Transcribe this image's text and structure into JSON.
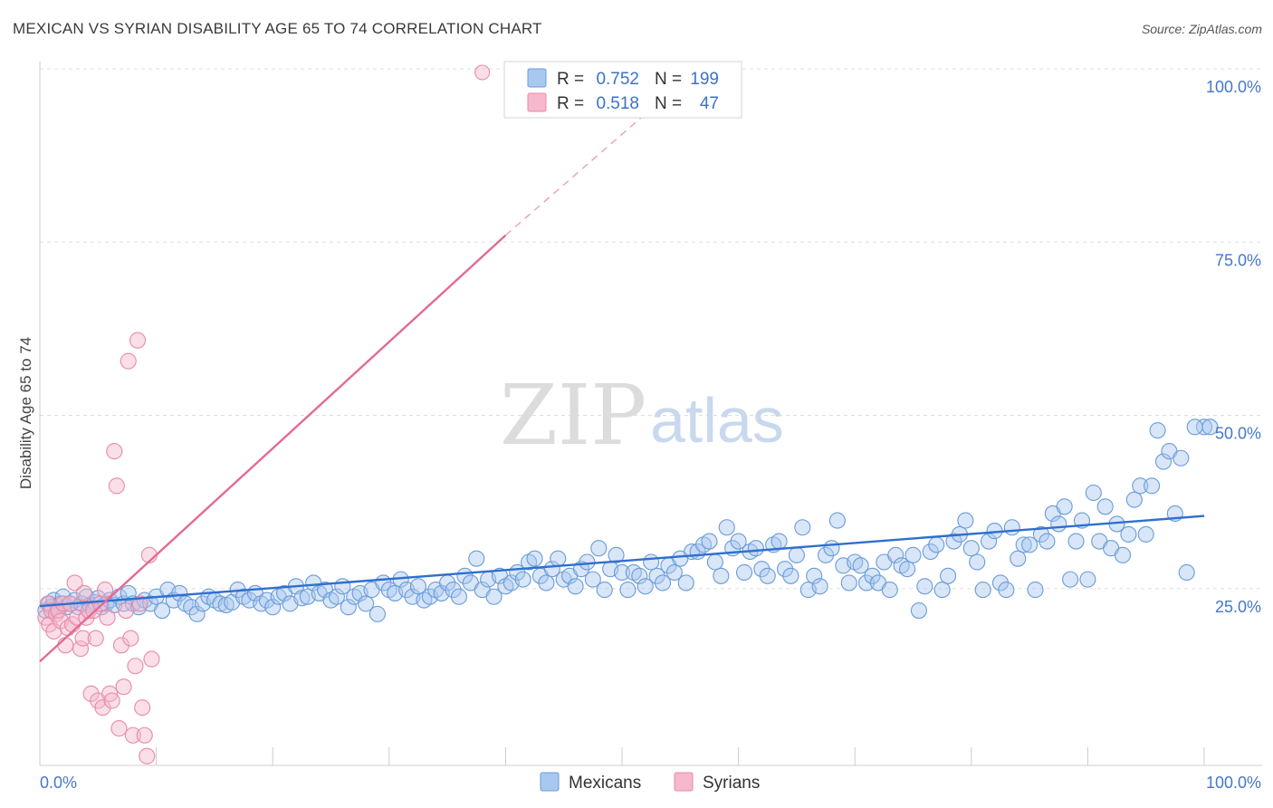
{
  "title": "MEXICAN VS SYRIAN DISABILITY AGE 65 TO 74 CORRELATION CHART",
  "source": "Source: ZipAtlas.com",
  "watermark": {
    "zip": "ZIP",
    "atlas": "atlas"
  },
  "chart_data": {
    "type": "scatter",
    "title": "MEXICAN VS SYRIAN DISABILITY AGE 65 TO 74 CORRELATION CHART",
    "xlabel": "",
    "ylabel": "Disability Age 65 to 74",
    "xlim": [
      0,
      100
    ],
    "ylim": [
      0,
      100
    ],
    "x_tick_labels": [
      "0.0%",
      "100.0%"
    ],
    "y_ticks": [
      25,
      50,
      75,
      100
    ],
    "y_tick_labels": [
      "25.0%",
      "50.0%",
      "75.0%",
      "100.0%"
    ],
    "grid": true,
    "legend_placement": "top-center",
    "legend": [
      {
        "r_label": "R =",
        "r": "0.752",
        "n_label": "N =",
        "n": "199",
        "color": "#a8c8f0"
      },
      {
        "r_label": "R =",
        "r": "0.518",
        "n_label": "N =",
        "n": "47",
        "color": "#f5b8cc"
      }
    ],
    "series": [
      {
        "name": "Mexicans",
        "color": "#a8c8f0",
        "stroke": "#6a9bd8",
        "trend": {
          "x": [
            0,
            100
          ],
          "y": [
            23.0,
            36.0
          ],
          "color": "#2f6fce"
        },
        "points": [
          [
            0.5,
            23
          ],
          [
            0.8,
            24
          ],
          [
            1,
            23.5
          ],
          [
            1.2,
            24.5
          ],
          [
            1.5,
            23
          ],
          [
            1.8,
            24
          ],
          [
            2,
            25
          ],
          [
            2.3,
            23.5
          ],
          [
            2.6,
            24
          ],
          [
            3,
            24.5
          ],
          [
            3.3,
            23.5
          ],
          [
            3.6,
            24
          ],
          [
            4,
            25
          ],
          [
            4.3,
            23.8
          ],
          [
            4.7,
            24.2
          ],
          [
            5,
            24.8
          ],
          [
            5.3,
            23.5
          ],
          [
            5.7,
            24
          ],
          [
            6,
            24.5
          ],
          [
            6.4,
            23.8
          ],
          [
            6.8,
            25
          ],
          [
            7.2,
            24
          ],
          [
            7.6,
            25.5
          ],
          [
            8,
            24
          ],
          [
            8.5,
            23.5
          ],
          [
            9,
            24.5
          ],
          [
            9.5,
            24
          ],
          [
            10,
            25
          ],
          [
            10.5,
            23
          ],
          [
            11,
            26
          ],
          [
            11.5,
            24.5
          ],
          [
            12,
            25.5
          ],
          [
            12.5,
            24
          ],
          [
            13,
            23.5
          ],
          [
            13.5,
            22.5
          ],
          [
            14,
            24
          ],
          [
            14.5,
            25
          ],
          [
            15,
            24.5
          ],
          [
            15.5,
            24
          ],
          [
            16,
            23.8
          ],
          [
            16.5,
            24.2
          ],
          [
            17,
            26
          ],
          [
            17.5,
            25
          ],
          [
            18,
            24.5
          ],
          [
            18.5,
            25.5
          ],
          [
            19,
            24
          ],
          [
            19.5,
            24.5
          ],
          [
            20,
            23.5
          ],
          [
            20.5,
            25
          ],
          [
            21,
            25.5
          ],
          [
            21.5,
            24
          ],
          [
            22,
            26.5
          ],
          [
            22.5,
            24.8
          ],
          [
            23,
            25
          ],
          [
            23.5,
            27
          ],
          [
            24,
            25.5
          ],
          [
            24.5,
            26
          ],
          [
            25,
            24.5
          ],
          [
            25.5,
            25
          ],
          [
            26,
            26.5
          ],
          [
            26.5,
            23.5
          ],
          [
            27,
            25
          ],
          [
            27.5,
            25.5
          ],
          [
            28,
            24
          ],
          [
            28.5,
            26
          ],
          [
            29,
            22.5
          ],
          [
            29.5,
            27
          ],
          [
            30,
            26
          ],
          [
            30.5,
            25.5
          ],
          [
            31,
            27.5
          ],
          [
            31.5,
            26
          ],
          [
            32,
            25
          ],
          [
            32.5,
            26.5
          ],
          [
            33,
            24.5
          ],
          [
            33.5,
            25
          ],
          [
            34,
            26
          ],
          [
            34.5,
            25.5
          ],
          [
            35,
            27
          ],
          [
            35.5,
            26
          ],
          [
            36,
            25
          ],
          [
            36.5,
            28
          ],
          [
            37,
            27
          ],
          [
            37.5,
            30.5
          ],
          [
            38,
            26
          ],
          [
            38.5,
            27.5
          ],
          [
            39,
            25
          ],
          [
            39.5,
            28
          ],
          [
            40,
            26.5
          ],
          [
            40.5,
            27
          ],
          [
            41,
            28.5
          ],
          [
            41.5,
            27.5
          ],
          [
            42,
            30
          ],
          [
            42.5,
            30.5
          ],
          [
            43,
            28
          ],
          [
            43.5,
            27
          ],
          [
            44,
            29
          ],
          [
            44.5,
            30.5
          ],
          [
            45,
            27.5
          ],
          [
            45.5,
            28
          ],
          [
            46,
            26.5
          ],
          [
            46.5,
            29
          ],
          [
            47,
            30
          ],
          [
            47.5,
            27.5
          ],
          [
            48,
            32
          ],
          [
            48.5,
            26
          ],
          [
            49,
            29
          ],
          [
            49.5,
            31
          ],
          [
            50,
            28.5
          ],
          [
            50.5,
            26
          ],
          [
            51,
            28.5
          ],
          [
            51.5,
            28
          ],
          [
            52,
            26.5
          ],
          [
            52.5,
            30
          ],
          [
            53,
            28
          ],
          [
            53.5,
            27
          ],
          [
            54,
            29.5
          ],
          [
            54.5,
            28.5
          ],
          [
            55,
            30.5
          ],
          [
            55.5,
            27
          ],
          [
            56,
            31.5
          ],
          [
            56.5,
            31.5
          ],
          [
            57,
            32.5
          ],
          [
            57.5,
            33
          ],
          [
            58,
            30
          ],
          [
            58.5,
            28
          ],
          [
            59,
            35
          ],
          [
            59.5,
            32
          ],
          [
            60,
            33
          ],
          [
            60.5,
            28.5
          ],
          [
            61,
            31.5
          ],
          [
            61.5,
            32
          ],
          [
            62,
            29
          ],
          [
            62.5,
            28
          ],
          [
            63,
            32.5
          ],
          [
            63.5,
            33
          ],
          [
            64,
            29
          ],
          [
            64.5,
            28
          ],
          [
            65,
            31
          ],
          [
            65.5,
            35
          ],
          [
            66,
            26
          ],
          [
            66.5,
            28
          ],
          [
            67,
            26.5
          ],
          [
            67.5,
            31
          ],
          [
            68,
            32
          ],
          [
            68.5,
            36
          ],
          [
            69,
            29.5
          ],
          [
            69.5,
            27
          ],
          [
            70,
            30
          ],
          [
            70.5,
            29.5
          ],
          [
            71,
            27
          ],
          [
            71.5,
            28
          ],
          [
            72,
            27
          ],
          [
            72.5,
            30
          ],
          [
            73,
            26
          ],
          [
            73.5,
            31
          ],
          [
            74,
            29.5
          ],
          [
            74.5,
            29
          ],
          [
            75,
            31
          ],
          [
            75.5,
            23
          ],
          [
            76,
            26.5
          ],
          [
            76.5,
            31.5
          ],
          [
            77,
            32.5
          ],
          [
            77.5,
            26
          ],
          [
            78,
            28
          ],
          [
            78.5,
            33
          ],
          [
            79,
            34
          ],
          [
            79.5,
            36
          ],
          [
            80,
            32
          ],
          [
            80.5,
            30
          ],
          [
            81,
            26
          ],
          [
            81.5,
            33
          ],
          [
            82,
            34.5
          ],
          [
            82.5,
            27
          ],
          [
            83,
            26
          ],
          [
            83.5,
            35
          ],
          [
            84,
            30.5
          ],
          [
            84.5,
            32.5
          ],
          [
            85,
            32.5
          ],
          [
            85.5,
            26
          ],
          [
            86,
            34
          ],
          [
            86.5,
            33
          ],
          [
            87,
            37
          ],
          [
            87.5,
            35.5
          ],
          [
            88,
            38
          ],
          [
            88.5,
            27.5
          ],
          [
            89,
            33
          ],
          [
            89.5,
            36
          ],
          [
            90,
            27.5
          ],
          [
            90.5,
            40
          ],
          [
            91,
            33
          ],
          [
            91.5,
            38
          ],
          [
            92,
            32
          ],
          [
            92.5,
            35.5
          ],
          [
            93,
            31
          ],
          [
            93.5,
            34
          ],
          [
            94,
            39
          ],
          [
            94.5,
            41
          ],
          [
            95,
            34
          ],
          [
            95.5,
            41
          ],
          [
            96,
            49
          ],
          [
            96.5,
            44.5
          ],
          [
            97,
            46
          ],
          [
            97.5,
            37
          ],
          [
            98,
            45
          ],
          [
            98.5,
            28.5
          ],
          [
            100,
            49.5
          ],
          [
            99.2,
            49.5
          ],
          [
            100.5,
            49.5
          ]
        ]
      },
      {
        "name": "Syrians",
        "color": "#f5b8cc",
        "stroke": "#e889a8",
        "trend": {
          "x": [
            0,
            40
          ],
          "y": [
            15.0,
            76.5
          ],
          "color": "#e46a93"
        },
        "trend_dashed": {
          "x": [
            40,
            52
          ],
          "y": [
            76.5,
            94.0
          ],
          "color": "#e8a0b8"
        },
        "points": [
          [
            0.5,
            22
          ],
          [
            0.7,
            24
          ],
          [
            0.8,
            21
          ],
          [
            1,
            23
          ],
          [
            1.2,
            20
          ],
          [
            1.4,
            22.5
          ],
          [
            1.6,
            23
          ],
          [
            1.8,
            21.5
          ],
          [
            2,
            24
          ],
          [
            2.2,
            18
          ],
          [
            2.4,
            20.5
          ],
          [
            2.6,
            24
          ],
          [
            2.8,
            21
          ],
          [
            3,
            27
          ],
          [
            3.2,
            22
          ],
          [
            3.5,
            17.5
          ],
          [
            3.7,
            19
          ],
          [
            3.8,
            25.5
          ],
          [
            4,
            22
          ],
          [
            4.2,
            23
          ],
          [
            4.4,
            11
          ],
          [
            4.6,
            23
          ],
          [
            4.8,
            19
          ],
          [
            5,
            10
          ],
          [
            5.2,
            24
          ],
          [
            5.4,
            9
          ],
          [
            5.6,
            26
          ],
          [
            5.8,
            22
          ],
          [
            6,
            11
          ],
          [
            6.2,
            10
          ],
          [
            6.4,
            46
          ],
          [
            6.6,
            41
          ],
          [
            6.8,
            6
          ],
          [
            7,
            18
          ],
          [
            7.2,
            12
          ],
          [
            7.4,
            23
          ],
          [
            7.6,
            59
          ],
          [
            7.8,
            19
          ],
          [
            8,
            5
          ],
          [
            8.2,
            15
          ],
          [
            8.4,
            62
          ],
          [
            8.6,
            24
          ],
          [
            8.8,
            9
          ],
          [
            9,
            5
          ],
          [
            9.2,
            2
          ],
          [
            9.4,
            31
          ],
          [
            9.6,
            16
          ]
        ]
      }
    ]
  },
  "bottom_legend": [
    {
      "label": "Mexicans",
      "color": "#a8c8f0"
    },
    {
      "label": "Syrians",
      "color": "#f5b8cc"
    }
  ],
  "special_point": {
    "series": "Syrians",
    "x": 38,
    "y": 100
  }
}
